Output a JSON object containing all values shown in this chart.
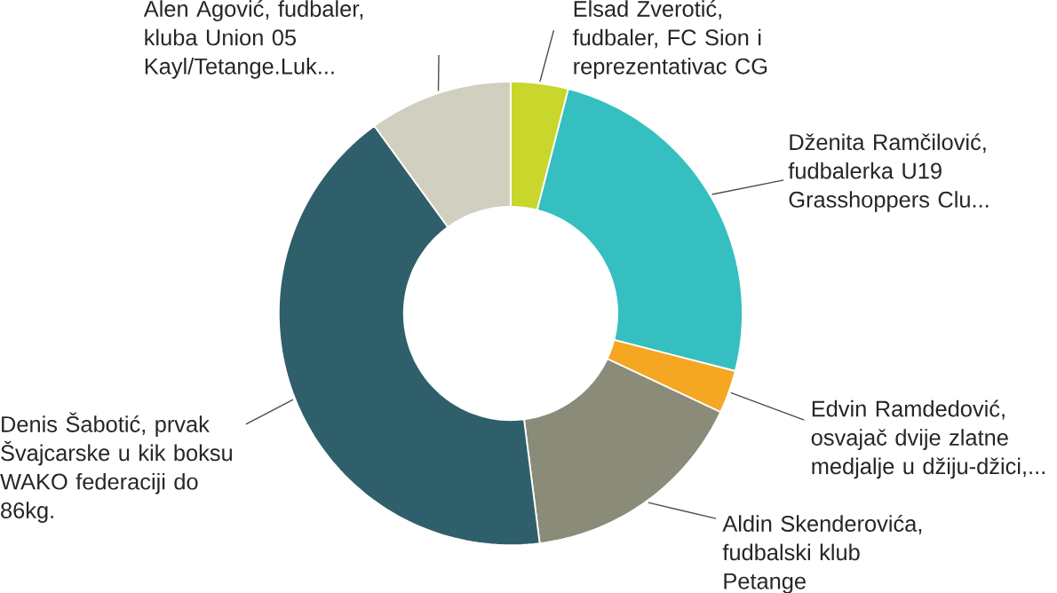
{
  "chart_data": {
    "type": "donut",
    "categories": [
      "Elsad Zverotić, fudbaler, FC Sion i reprezentativac CG",
      "Dženita Ramčilović, fudbalerka U19 Grasshoppers Clu...",
      "Edvin Ramdedović, osvajač dvije zlatne medjalje u džiju-džici,...",
      "Aldin Skenderovića, fudbalski klub Petange",
      "Denis Šabotić, prvak Švajcarske u kik boksu WAKO federaciji do 86kg.",
      "Alen Agović, fudbaler, kluba Union 05 Kayl/Tetange.Luk..."
    ],
    "values": [
      4,
      25,
      3,
      16,
      42,
      10
    ],
    "colors": [
      "#c9d62b",
      "#35bfc0",
      "#f5a623",
      "#8a8b78",
      "#2f5f6b",
      "#d1cfc0"
    ]
  }
}
